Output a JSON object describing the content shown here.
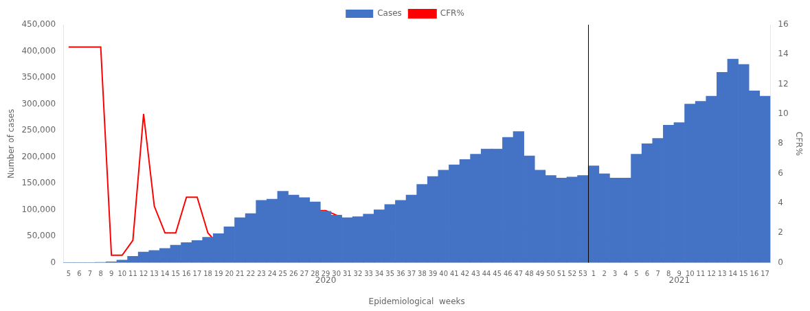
{
  "chart_data": {
    "type": "bar",
    "categories": [
      5,
      6,
      7,
      8,
      9,
      10,
      11,
      12,
      13,
      14,
      15,
      16,
      17,
      18,
      19,
      20,
      21,
      22,
      23,
      24,
      25,
      26,
      27,
      28,
      29,
      30,
      31,
      32,
      33,
      34,
      35,
      36,
      37,
      38,
      39,
      40,
      41,
      42,
      43,
      44,
      45,
      46,
      47,
      48,
      49,
      50,
      51,
      52,
      53,
      1,
      2,
      3,
      4,
      5,
      6,
      7,
      8,
      9,
      10,
      11,
      12,
      13,
      14,
      15,
      16,
      17
    ],
    "series": [
      {
        "name": "Cases",
        "type": "bar",
        "color": "#4472C4",
        "values": [
          200,
          300,
          500,
          800,
          1500,
          5000,
          12000,
          20000,
          23000,
          27000,
          33000,
          38000,
          42000,
          48000,
          55000,
          68000,
          85000,
          93000,
          118000,
          120000,
          135000,
          128000,
          123000,
          115000,
          97000,
          90000,
          85000,
          87000,
          92000,
          100000,
          110000,
          118000,
          128000,
          148000,
          163000,
          175000,
          185000,
          195000,
          205000,
          215000,
          215000,
          237000,
          248000,
          202000,
          175000,
          165000,
          160000,
          162000,
          165000,
          183000,
          168000,
          160000,
          160000,
          205000,
          225000,
          235000,
          260000,
          265000,
          300000,
          305000,
          315000,
          360000,
          385000,
          375000,
          325000,
          315000
        ]
      },
      {
        "name": "CFR%",
        "type": "line",
        "color": "#FF0000",
        "axis": "y2",
        "marker": "none",
        "values": [
          14.5,
          14.5,
          14.5,
          14.5,
          0.5,
          0.5,
          1.5,
          10.0,
          3.8,
          2.0,
          2.0,
          4.4,
          4.4,
          2.0,
          1.2,
          1.2,
          1.2,
          1.4,
          1.3,
          2.2,
          2.9,
          3.6,
          3.6,
          3.5,
          3.5,
          3.2,
          2.8,
          2.7,
          2.5,
          2.4,
          2.3,
          2.3,
          2.3,
          2.3,
          2.3,
          2.3,
          2.4,
          2.5,
          2.5,
          2.5,
          2.5,
          2.5,
          2.5,
          2.3,
          2.2,
          2.1,
          2.0,
          1.9,
          1.9,
          1.9,
          1.7,
          1.6,
          1.5,
          1.5,
          1.4,
          1.4,
          1.3,
          1.3,
          1.2,
          1.2,
          1.3,
          1.3,
          1.4,
          1.5,
          1.7,
          2.0
        ]
      }
    ],
    "xlabel": "Epidemiological  weeks",
    "ylabel": "Number of cases",
    "y2label": "CFR%",
    "annotations": [
      "2020",
      "2021"
    ],
    "ylim": [
      0,
      450000
    ],
    "yticks": [
      0,
      {
        "value": 50000,
        "label": "50,000"
      },
      {
        "value": 100000,
        "label": "100,000"
      },
      {
        "value": 150000,
        "label": "150,000"
      },
      {
        "value": 200000,
        "label": "200,000"
      },
      {
        "value": 250000,
        "label": "250,000"
      },
      {
        "value": 300000,
        "label": "300,000"
      },
      {
        "value": 350000,
        "label": "350,000"
      },
      {
        "value": 400000,
        "label": "400,000"
      },
      {
        "value": 450000,
        "label": "450,000"
      }
    ],
    "y2lim": [
      0,
      16
    ],
    "y2ticks": [
      0,
      2,
      4,
      6,
      8,
      10,
      12,
      14,
      16
    ],
    "legend": "top",
    "grid": false
  }
}
